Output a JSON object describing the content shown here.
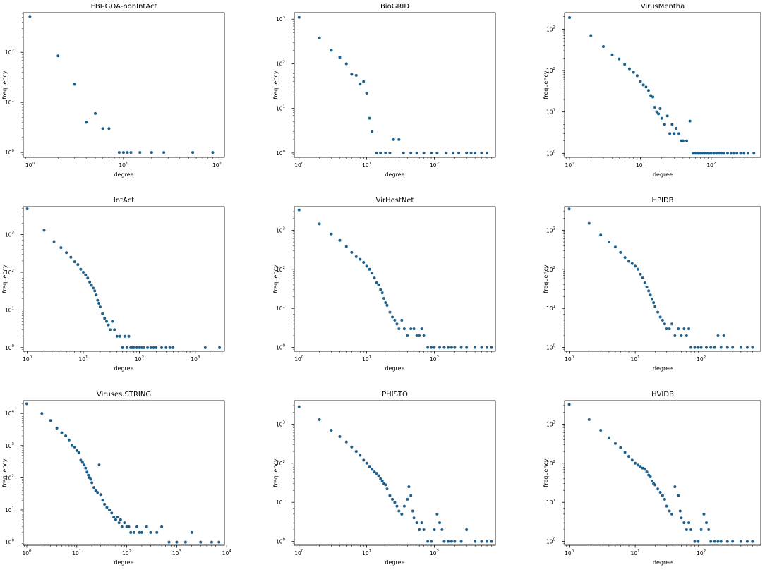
{
  "chart_data": [
    {
      "type": "scatter",
      "title": "EBI-GOA-nonIntAct",
      "xlabel": "degree",
      "ylabel": "frequency",
      "xscale": "log",
      "yscale": "log",
      "xlim": [
        0.85,
        120
      ],
      "ylim": [
        0.8,
        620
      ],
      "xtick_exps": [
        0,
        1,
        2
      ],
      "ytick_exps": [
        0,
        1,
        2
      ],
      "marker_color": "#1f5f8b",
      "x": [
        1,
        2,
        3,
        4,
        5,
        6,
        7,
        9,
        10,
        11,
        12,
        15,
        20,
        27,
        55,
        90
      ],
      "y": [
        520,
        85,
        23,
        4,
        6,
        3,
        3,
        1,
        1,
        1,
        1,
        1,
        1,
        1,
        1,
        1
      ]
    },
    {
      "type": "scatter",
      "title": "BioGRID",
      "xlabel": "degree",
      "ylabel": "frequency",
      "xscale": "log",
      "yscale": "log",
      "xlim": [
        0.85,
        800
      ],
      "ylim": [
        0.8,
        1400
      ],
      "xtick_exps": [
        0,
        1,
        2
      ],
      "ytick_exps": [
        0,
        1,
        2,
        3
      ],
      "marker_color": "#1f5f8b",
      "x": [
        1,
        2,
        3,
        4,
        5,
        6,
        7,
        8,
        9,
        10,
        11,
        12,
        14,
        16,
        19,
        22,
        25,
        30,
        35,
        45,
        55,
        70,
        90,
        110,
        150,
        190,
        230,
        300,
        350,
        400,
        500,
        600
      ],
      "y": [
        1100,
        380,
        200,
        140,
        100,
        58,
        55,
        35,
        40,
        22,
        6,
        3,
        1,
        1,
        1,
        1,
        2,
        2,
        1,
        1,
        1,
        1,
        1,
        1,
        1,
        1,
        1,
        1,
        1,
        1,
        1,
        1
      ]
    },
    {
      "type": "scatter",
      "title": "VirusMentha",
      "xlabel": "degree",
      "ylabel": "frequency",
      "xscale": "log",
      "yscale": "log",
      "xlim": [
        0.85,
        500
      ],
      "ylim": [
        0.8,
        2500
      ],
      "xtick_exps": [
        0,
        1,
        2
      ],
      "ytick_exps": [
        0,
        1,
        2,
        3
      ],
      "marker_color": "#1f5f8b",
      "x": [
        1,
        2,
        3,
        4,
        5,
        6,
        7,
        8,
        9,
        10,
        11,
        12,
        13,
        14,
        15,
        16,
        17,
        18,
        19,
        20,
        22,
        24,
        26,
        28,
        30,
        32,
        35,
        38,
        40,
        45,
        50,
        55,
        60,
        65,
        70,
        75,
        80,
        85,
        90,
        95,
        100,
        110,
        120,
        130,
        140,
        150,
        170,
        190,
        210,
        230,
        260,
        290,
        330,
        400
      ],
      "y": [
        1900,
        700,
        380,
        240,
        190,
        140,
        110,
        90,
        75,
        55,
        45,
        40,
        33,
        25,
        23,
        13,
        10,
        9,
        12,
        7,
        5,
        8,
        3,
        5,
        3,
        4,
        3,
        2,
        2,
        2,
        6,
        1,
        1,
        1,
        1,
        1,
        1,
        1,
        1,
        1,
        1,
        1,
        1,
        1,
        1,
        1,
        1,
        1,
        1,
        1,
        1,
        1,
        1,
        1
      ]
    },
    {
      "type": "scatter",
      "title": "IntAct",
      "xlabel": "degree",
      "ylabel": "frequency",
      "xscale": "log",
      "yscale": "log",
      "xlim": [
        0.85,
        3300
      ],
      "ylim": [
        0.8,
        5500
      ],
      "xtick_exps": [
        0,
        1,
        2,
        3
      ],
      "ytick_exps": [
        0,
        1,
        2,
        3
      ],
      "marker_color": "#1f5f8b",
      "x": [
        1,
        2,
        3,
        4,
        5,
        6,
        7,
        8,
        9,
        10,
        11,
        12,
        13,
        14,
        15,
        16,
        17,
        18,
        19,
        20,
        22,
        24,
        26,
        28,
        30,
        33,
        36,
        40,
        45,
        50,
        55,
        60,
        65,
        70,
        75,
        80,
        90,
        100,
        110,
        120,
        140,
        160,
        180,
        200,
        250,
        300,
        350,
        400,
        1500,
        2700
      ],
      "y": [
        4800,
        1300,
        650,
        450,
        330,
        250,
        190,
        160,
        120,
        100,
        85,
        70,
        55,
        45,
        38,
        32,
        25,
        18,
        15,
        12,
        8,
        6,
        5,
        4,
        3,
        5,
        3,
        2,
        2,
        1,
        2,
        1,
        2,
        1,
        1,
        1,
        1,
        1,
        1,
        1,
        1,
        1,
        1,
        1,
        1,
        1,
        1,
        1,
        1,
        1
      ]
    },
    {
      "type": "scatter",
      "title": "VirHostNet",
      "xlabel": "degree",
      "ylabel": "frequency",
      "xscale": "log",
      "yscale": "log",
      "xlim": [
        0.85,
        800
      ],
      "ylim": [
        0.8,
        4000
      ],
      "xtick_exps": [
        0,
        1,
        2
      ],
      "ytick_exps": [
        0,
        1,
        2,
        3
      ],
      "marker_color": "#1f5f8b",
      "x": [
        1,
        2,
        3,
        4,
        5,
        6,
        7,
        8,
        9,
        10,
        11,
        12,
        13,
        14,
        15,
        16,
        17,
        18,
        19,
        20,
        22,
        24,
        26,
        28,
        30,
        33,
        36,
        40,
        45,
        50,
        55,
        60,
        65,
        70,
        80,
        90,
        100,
        120,
        140,
        160,
        180,
        200,
        250,
        300,
        400,
        500,
        600,
        700
      ],
      "y": [
        3300,
        1450,
        800,
        550,
        380,
        270,
        210,
        180,
        150,
        120,
        100,
        80,
        60,
        45,
        40,
        30,
        25,
        18,
        14,
        12,
        8,
        6,
        5,
        4,
        3,
        5,
        3,
        2,
        3,
        3,
        2,
        2,
        3,
        2,
        1,
        1,
        1,
        1,
        1,
        1,
        1,
        1,
        1,
        1,
        1,
        1,
        1,
        1
      ]
    },
    {
      "type": "scatter",
      "title": "HPIDB",
      "xlabel": "degree",
      "ylabel": "frequency",
      "xscale": "log",
      "yscale": "log",
      "xlim": [
        0.85,
        800
      ],
      "ylim": [
        0.8,
        4000
      ],
      "xtick_exps": [
        0,
        1,
        2
      ],
      "ytick_exps": [
        0,
        1,
        2,
        3
      ],
      "marker_color": "#1f5f8b",
      "x": [
        1,
        2,
        3,
        4,
        5,
        6,
        7,
        8,
        9,
        10,
        11,
        12,
        13,
        14,
        15,
        16,
        17,
        18,
        19,
        20,
        22,
        24,
        26,
        28,
        30,
        33,
        36,
        40,
        45,
        50,
        55,
        60,
        65,
        70,
        80,
        90,
        100,
        120,
        140,
        160,
        180,
        200,
        220,
        250,
        300,
        400,
        500,
        600
      ],
      "y": [
        3500,
        1500,
        750,
        500,
        370,
        270,
        200,
        160,
        140,
        120,
        100,
        75,
        60,
        45,
        35,
        28,
        22,
        17,
        14,
        11,
        8,
        6,
        5,
        4,
        3,
        3,
        4,
        2,
        3,
        2,
        3,
        2,
        3,
        1,
        1,
        1,
        1,
        1,
        1,
        1,
        2,
        1,
        2,
        1,
        1,
        1,
        1,
        1
      ]
    },
    {
      "type": "scatter",
      "title": "Viruses.STRING",
      "xlabel": "degree",
      "ylabel": "frequency",
      "xscale": "log",
      "yscale": "log",
      "xlim": [
        0.85,
        9000
      ],
      "ylim": [
        0.8,
        25000
      ],
      "xtick_exps": [
        0,
        1,
        2,
        3,
        4
      ],
      "ytick_exps": [
        0,
        1,
        2,
        3,
        4
      ],
      "marker_color": "#1f5f8b",
      "x": [
        1,
        2,
        3,
        4,
        5,
        6,
        7,
        8,
        9,
        10,
        11,
        12,
        13,
        14,
        15,
        16,
        17,
        18,
        19,
        20,
        22,
        24,
        26,
        28,
        30,
        33,
        36,
        40,
        45,
        50,
        55,
        60,
        65,
        70,
        75,
        80,
        90,
        100,
        110,
        120,
        140,
        160,
        180,
        200,
        250,
        300,
        400,
        500,
        700,
        1000,
        1500,
        2000,
        3000,
        5000,
        7000
      ],
      "y": [
        20000,
        10000,
        6000,
        3500,
        2500,
        2000,
        1500,
        1000,
        900,
        700,
        600,
        350,
        300,
        250,
        200,
        150,
        120,
        100,
        90,
        70,
        50,
        40,
        35,
        250,
        30,
        20,
        15,
        12,
        10,
        8,
        6,
        5,
        6,
        4,
        5,
        3,
        4,
        3,
        3,
        2,
        2,
        3,
        2,
        2,
        3,
        2,
        2,
        3,
        1,
        1,
        1,
        2,
        1,
        1,
        1
      ]
    },
    {
      "type": "scatter",
      "title": "PHISTO",
      "xlabel": "degree",
      "ylabel": "frequency",
      "xscale": "log",
      "yscale": "log",
      "xlim": [
        0.85,
        800
      ],
      "ylim": [
        0.8,
        4000
      ],
      "xtick_exps": [
        0,
        1,
        2
      ],
      "ytick_exps": [
        0,
        1,
        2,
        3
      ],
      "marker_color": "#1f5f8b",
      "x": [
        1,
        2,
        3,
        4,
        5,
        6,
        7,
        8,
        9,
        10,
        11,
        12,
        13,
        14,
        15,
        16,
        17,
        18,
        19,
        20,
        22,
        24,
        26,
        28,
        30,
        33,
        36,
        40,
        42,
        45,
        48,
        50,
        55,
        60,
        65,
        70,
        80,
        90,
        100,
        110,
        120,
        130,
        140,
        160,
        180,
        200,
        250,
        300,
        400,
        500,
        600,
        700
      ],
      "y": [
        2800,
        1300,
        700,
        480,
        350,
        260,
        200,
        160,
        120,
        100,
        80,
        70,
        60,
        55,
        48,
        40,
        35,
        30,
        28,
        22,
        15,
        12,
        10,
        8,
        6,
        5,
        8,
        12,
        25,
        15,
        6,
        4,
        3,
        2,
        3,
        2,
        1,
        1,
        2,
        5,
        3,
        2,
        1,
        1,
        1,
        1,
        1,
        2,
        1,
        1,
        1,
        1
      ]
    },
    {
      "type": "scatter",
      "title": "HVIDB",
      "xlabel": "degree",
      "ylabel": "frequency",
      "xscale": "log",
      "yscale": "log",
      "xlim": [
        0.85,
        800
      ],
      "ylim": [
        0.8,
        4000
      ],
      "xtick_exps": [
        0,
        1,
        2
      ],
      "ytick_exps": [
        0,
        1,
        2,
        3
      ],
      "marker_color": "#1f5f8b",
      "x": [
        1,
        2,
        3,
        4,
        5,
        6,
        7,
        8,
        9,
        10,
        11,
        12,
        13,
        14,
        15,
        16,
        17,
        18,
        19,
        20,
        22,
        24,
        26,
        28,
        30,
        33,
        36,
        40,
        45,
        48,
        50,
        55,
        60,
        65,
        70,
        80,
        90,
        100,
        110,
        120,
        130,
        140,
        160,
        180,
        200,
        250,
        300,
        400,
        500,
        600
      ],
      "y": [
        3200,
        1300,
        700,
        450,
        320,
        250,
        190,
        150,
        120,
        100,
        90,
        80,
        75,
        70,
        60,
        50,
        45,
        35,
        30,
        28,
        22,
        18,
        15,
        12,
        8,
        6,
        5,
        25,
        15,
        6,
        4,
        3,
        2,
        3,
        2,
        1,
        1,
        2,
        5,
        3,
        2,
        1,
        1,
        1,
        1,
        1,
        1,
        1,
        1,
        1
      ]
    }
  ]
}
